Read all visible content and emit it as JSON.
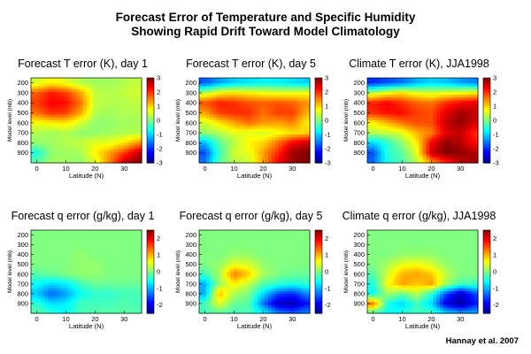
{
  "figure": {
    "title_line1": "Forecast Error of Temperature and Specific Humidity",
    "title_line2": "Showing Rapid Drift Toward Model Climatology",
    "credit": "Hannay et al. 2007"
  },
  "colormap": [
    "#00008f",
    "#0000ff",
    "#0080ff",
    "#00ffff",
    "#80ff80",
    "#ffff00",
    "#ff8000",
    "#ff0000",
    "#800000"
  ],
  "chart_data": [
    {
      "type": "heatmap",
      "title": "Forecast T error (K), day 1",
      "xlabel": "Latitude (N)",
      "ylabel": "Model level (mb)",
      "xticks": [
        0,
        10,
        20,
        30
      ],
      "yticks": [
        200,
        300,
        400,
        500,
        600,
        700,
        800,
        900
      ],
      "xlim": [
        -2,
        36
      ],
      "ylim": [
        150,
        1000
      ],
      "colorbar_ticks": [
        3,
        2,
        1,
        0,
        -1,
        -2,
        -3
      ],
      "clim": [
        -3,
        3
      ],
      "grid_y_levels_mb": [
        200,
        300,
        400,
        500,
        600,
        700,
        800,
        900,
        1000
      ],
      "grid_x_lat": [
        0,
        5,
        10,
        15,
        20,
        25,
        30,
        35
      ],
      "z": [
        [
          0.5,
          0.8,
          0.6,
          0.3,
          0.2,
          0.2,
          0.3,
          0.4
        ],
        [
          1.7,
          2.1,
          1.9,
          1.3,
          0.4,
          0.3,
          0.4,
          0.5
        ],
        [
          1.9,
          2.3,
          2.2,
          1.6,
          0.4,
          0.3,
          0.3,
          0.4
        ],
        [
          1.6,
          2.0,
          1.9,
          1.3,
          0.3,
          0.2,
          0.3,
          0.3
        ],
        [
          0.7,
          0.8,
          0.9,
          0.5,
          0.1,
          0.1,
          0.2,
          0.2
        ],
        [
          0.3,
          0.2,
          0.3,
          0.1,
          0.1,
          0.2,
          0.3,
          0.3
        ],
        [
          0.1,
          0.2,
          0.3,
          0.4,
          0.6,
          0.6,
          0.9,
          1.4
        ],
        [
          -0.6,
          0.1,
          0.2,
          0.2,
          0.8,
          1.3,
          1.9,
          2.6
        ],
        [
          -0.2,
          0.2,
          0.2,
          0.1,
          0.5,
          1.5,
          2.6,
          3.0
        ]
      ]
    },
    {
      "type": "heatmap",
      "title": "Forecast T error (K), day 5",
      "xlabel": "Latitude (N)",
      "ylabel": "Model level (mb)",
      "xticks": [
        0,
        10,
        20,
        30
      ],
      "yticks": [
        200,
        300,
        400,
        500,
        600,
        700,
        800,
        900
      ],
      "xlim": [
        -2,
        36
      ],
      "ylim": [
        150,
        1000
      ],
      "colorbar_ticks": [
        3,
        2,
        1,
        0,
        -1,
        -2,
        -3
      ],
      "clim": [
        -3,
        3
      ],
      "grid_y_levels_mb": [
        200,
        300,
        400,
        500,
        600,
        700,
        800,
        900,
        1000
      ],
      "grid_x_lat": [
        0,
        5,
        10,
        15,
        20,
        25,
        30,
        35
      ],
      "z": [
        [
          -1.7,
          -1.3,
          -1.0,
          -0.9,
          -0.8,
          -0.8,
          -0.9,
          -1.0
        ],
        [
          0.3,
          0.8,
          0.9,
          0.8,
          0.7,
          0.6,
          0.6,
          0.7
        ],
        [
          1.8,
          2.1,
          2.0,
          1.8,
          1.7,
          1.8,
          1.7,
          1.4
        ],
        [
          1.3,
          1.9,
          2.0,
          2.0,
          1.6,
          1.9,
          1.9,
          1.2
        ],
        [
          0.5,
          0.9,
          1.3,
          1.6,
          1.4,
          1.3,
          1.5,
          0.8
        ],
        [
          0.1,
          0.3,
          0.6,
          0.6,
          0.5,
          0.7,
          0.9,
          1.0
        ],
        [
          -1.2,
          -0.2,
          0.3,
          0.8,
          1.0,
          1.6,
          2.3,
          2.6
        ],
        [
          -1.8,
          -0.4,
          0.5,
          0.6,
          1.3,
          2.0,
          2.8,
          3.0
        ],
        [
          -1.5,
          -0.2,
          0.3,
          0.4,
          1.3,
          2.3,
          2.8,
          3.0
        ]
      ]
    },
    {
      "type": "heatmap",
      "title": "Climate T error (K), JJA1998",
      "xlabel": "Latitude (N)",
      "ylabel": "Model level (mb)",
      "xticks": [
        0,
        10,
        20,
        30
      ],
      "yticks": [
        200,
        300,
        400,
        500,
        600,
        700,
        800,
        900
      ],
      "xlim": [
        -2,
        36
      ],
      "ylim": [
        150,
        1000
      ],
      "colorbar_ticks": [
        3,
        2,
        1,
        0,
        -1,
        -2,
        -3
      ],
      "clim": [
        -3,
        3
      ],
      "grid_y_levels_mb": [
        200,
        300,
        400,
        500,
        600,
        700,
        800,
        900,
        1000
      ],
      "grid_x_lat": [
        0,
        5,
        10,
        15,
        20,
        25,
        30,
        35
      ],
      "z": [
        [
          -2.0,
          -1.8,
          -1.6,
          -1.2,
          -1.0,
          -1.1,
          -1.3,
          -1.5
        ],
        [
          0.3,
          0.7,
          0.9,
          0.6,
          0.5,
          0.6,
          0.7,
          0.8
        ],
        [
          2.1,
          2.3,
          2.0,
          1.7,
          1.6,
          2.0,
          2.3,
          2.4
        ],
        [
          2.0,
          2.2,
          2.2,
          1.9,
          1.8,
          2.4,
          2.8,
          2.6
        ],
        [
          0.8,
          1.2,
          1.6,
          1.8,
          1.8,
          2.6,
          2.9,
          2.5
        ],
        [
          0.3,
          0.4,
          0.6,
          1.2,
          1.5,
          2.4,
          2.6,
          2.0
        ],
        [
          -1.0,
          -0.5,
          0.1,
          0.8,
          2.3,
          2.9,
          2.7,
          2.2
        ],
        [
          -1.8,
          -0.5,
          -0.2,
          0.6,
          2.5,
          3.0,
          2.9,
          2.7
        ],
        [
          -1.6,
          -0.6,
          -0.3,
          0.3,
          1.3,
          2.0,
          2.6,
          2.8
        ]
      ]
    },
    {
      "type": "heatmap",
      "title": "Forecast q error (g/kg), day 1",
      "xlabel": "Latitude (N)",
      "ylabel": "Model level (mb)",
      "xticks": [
        0,
        10,
        20,
        30
      ],
      "yticks": [
        200,
        300,
        400,
        500,
        600,
        700,
        800,
        900
      ],
      "xlim": [
        -2,
        36
      ],
      "ylim": [
        150,
        1000
      ],
      "colorbar_ticks": [
        2,
        1,
        0,
        -1,
        -2
      ],
      "clim": [
        -2.5,
        2.5
      ],
      "grid_y_levels_mb": [
        200,
        300,
        400,
        500,
        600,
        700,
        800,
        900,
        1000
      ],
      "grid_x_lat": [
        0,
        5,
        10,
        15,
        20,
        25,
        30,
        35
      ],
      "z": [
        [
          0.0,
          0.0,
          0.0,
          0.0,
          0.0,
          0.0,
          0.0,
          0.0
        ],
        [
          0.0,
          0.0,
          0.0,
          0.0,
          0.0,
          0.0,
          0.0,
          0.0
        ],
        [
          0.0,
          0.0,
          0.0,
          0.1,
          0.0,
          0.0,
          0.0,
          0.0
        ],
        [
          0.0,
          0.0,
          0.0,
          0.1,
          0.1,
          0.0,
          0.0,
          0.0
        ],
        [
          -0.2,
          -0.1,
          0.0,
          0.1,
          0.1,
          0.0,
          0.0,
          0.0
        ],
        [
          -0.6,
          -0.8,
          -0.7,
          -0.3,
          -0.1,
          -0.1,
          -0.1,
          -0.1
        ],
        [
          -0.9,
          -1.4,
          -1.1,
          -0.6,
          -0.4,
          -0.4,
          -0.3,
          -0.3
        ],
        [
          -0.4,
          -0.8,
          -0.7,
          -0.3,
          -0.3,
          -0.3,
          -0.2,
          -0.3
        ],
        [
          -0.2,
          -0.4,
          -0.6,
          -0.3,
          -0.2,
          -0.2,
          -0.2,
          -0.2
        ]
      ]
    },
    {
      "type": "heatmap",
      "title": "Forecast q error (g/kg), day 5",
      "xlabel": "Latitude (N)",
      "ylabel": "Model level (mb)",
      "xticks": [
        0,
        10,
        20,
        30
      ],
      "yticks": [
        200,
        300,
        400,
        500,
        600,
        700,
        800,
        900
      ],
      "xlim": [
        -2,
        36
      ],
      "ylim": [
        150,
        1000
      ],
      "colorbar_ticks": [
        2,
        1,
        0,
        -1,
        -2
      ],
      "clim": [
        -2.5,
        2.5
      ],
      "grid_y_levels_mb": [
        200,
        300,
        400,
        500,
        600,
        700,
        800,
        900,
        1000
      ],
      "grid_x_lat": [
        0,
        5,
        10,
        15,
        20,
        25,
        30,
        35
      ],
      "z": [
        [
          0.0,
          0.0,
          0.0,
          0.0,
          0.0,
          0.0,
          0.0,
          0.0
        ],
        [
          0.0,
          0.0,
          0.0,
          0.0,
          0.0,
          0.0,
          0.0,
          0.0
        ],
        [
          0.0,
          0.0,
          0.1,
          0.1,
          0.0,
          0.0,
          0.0,
          0.0
        ],
        [
          0.0,
          0.1,
          0.5,
          0.4,
          0.1,
          0.0,
          0.0,
          0.0
        ],
        [
          -0.3,
          0.2,
          1.3,
          0.9,
          0.2,
          0.0,
          -0.1,
          -0.1
        ],
        [
          -1.0,
          0.1,
          0.7,
          0.3,
          -0.2,
          -0.4,
          -0.5,
          -0.4
        ],
        [
          -1.0,
          1.0,
          0.2,
          0.0,
          -0.8,
          -1.5,
          -1.7,
          -1.2
        ],
        [
          -0.3,
          0.5,
          -0.1,
          -0.2,
          -1.3,
          -2.2,
          -2.3,
          -1.8
        ],
        [
          -0.3,
          -0.2,
          -0.3,
          -0.3,
          -0.6,
          -1.2,
          -1.4,
          -1.2
        ]
      ]
    },
    {
      "type": "heatmap",
      "title": "Climate q error (g/kg), JJA1998",
      "xlabel": "Latitude (N)",
      "ylabel": "Model level (mb)",
      "xticks": [
        0,
        10,
        20,
        30
      ],
      "yticks": [
        200,
        300,
        400,
        500,
        600,
        700,
        800,
        900
      ],
      "xlim": [
        -2,
        36
      ],
      "ylim": [
        150,
        1000
      ],
      "colorbar_ticks": [
        2,
        1,
        0,
        -1,
        -2
      ],
      "clim": [
        -2.5,
        2.5
      ],
      "grid_y_levels_mb": [
        200,
        300,
        400,
        500,
        600,
        700,
        800,
        900,
        1000
      ],
      "grid_x_lat": [
        0,
        5,
        10,
        15,
        20,
        25,
        30,
        35
      ],
      "z": [
        [
          0.0,
          0.0,
          0.0,
          0.0,
          0.0,
          0.0,
          0.0,
          0.0
        ],
        [
          0.0,
          0.0,
          0.0,
          0.0,
          0.0,
          0.0,
          0.0,
          0.0
        ],
        [
          0.0,
          0.0,
          0.1,
          0.1,
          0.1,
          0.0,
          0.0,
          0.0
        ],
        [
          0.0,
          0.2,
          0.5,
          0.6,
          0.4,
          0.1,
          0.0,
          0.0
        ],
        [
          -0.2,
          0.4,
          1.0,
          1.1,
          0.9,
          0.3,
          0.0,
          0.0
        ],
        [
          -0.5,
          0.6,
          1.1,
          0.9,
          1.1,
          0.2,
          -0.3,
          -0.3
        ],
        [
          -0.6,
          0.2,
          -0.1,
          0.3,
          -0.4,
          -1.5,
          -2.2,
          -1.5
        ],
        [
          1.3,
          -0.5,
          -0.8,
          -0.3,
          -0.8,
          -2.0,
          -2.4,
          -1.8
        ],
        [
          -0.3,
          -0.6,
          -0.5,
          -0.3,
          -0.3,
          -0.8,
          -1.0,
          -1.0
        ]
      ]
    }
  ]
}
